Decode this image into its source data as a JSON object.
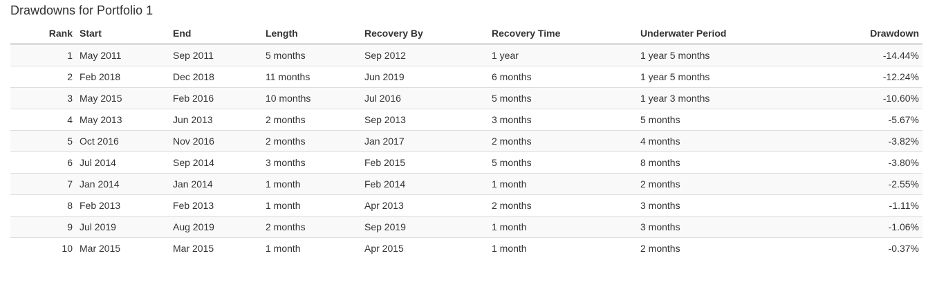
{
  "title": "Drawdowns for Portfolio 1",
  "columns": [
    "Rank",
    "Start",
    "End",
    "Length",
    "Recovery By",
    "Recovery Time",
    "Underwater Period",
    "Drawdown"
  ],
  "rows": [
    [
      "1",
      "May 2011",
      "Sep 2011",
      "5 months",
      "Sep 2012",
      "1 year",
      "1 year 5 months",
      "-14.44%"
    ],
    [
      "2",
      "Feb 2018",
      "Dec 2018",
      "11 months",
      "Jun 2019",
      "6 months",
      "1 year 5 months",
      "-12.24%"
    ],
    [
      "3",
      "May 2015",
      "Feb 2016",
      "10 months",
      "Jul 2016",
      "5 months",
      "1 year 3 months",
      "-10.60%"
    ],
    [
      "4",
      "May 2013",
      "Jun 2013",
      "2 months",
      "Sep 2013",
      "3 months",
      "5 months",
      "-5.67%"
    ],
    [
      "5",
      "Oct 2016",
      "Nov 2016",
      "2 months",
      "Jan 2017",
      "2 months",
      "4 months",
      "-3.82%"
    ],
    [
      "6",
      "Jul 2014",
      "Sep 2014",
      "3 months",
      "Feb 2015",
      "5 months",
      "8 months",
      "-3.80%"
    ],
    [
      "7",
      "Jan 2014",
      "Jan 2014",
      "1 month",
      "Feb 2014",
      "1 month",
      "2 months",
      "-2.55%"
    ],
    [
      "8",
      "Feb 2013",
      "Feb 2013",
      "1 month",
      "Apr 2013",
      "2 months",
      "3 months",
      "-1.11%"
    ],
    [
      "9",
      "Jul 2019",
      "Aug 2019",
      "2 months",
      "Sep 2019",
      "1 month",
      "3 months",
      "-1.06%"
    ],
    [
      "10",
      "Mar 2015",
      "Mar 2015",
      "1 month",
      "Apr 2015",
      "1 month",
      "2 months",
      "-0.37%"
    ]
  ]
}
